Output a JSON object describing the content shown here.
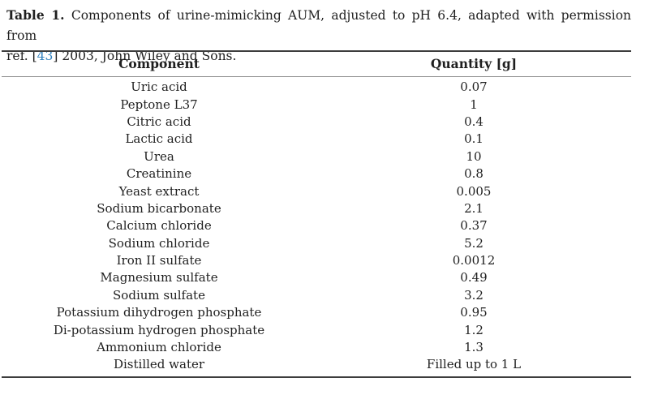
{
  "caption": {
    "label": "Table 1.",
    "line1_rest": "Components of urine-mimicking AUM, adjusted to pH 6.4, adapted with permission from",
    "line2_prefix": "ref. [",
    "ref_number": "43",
    "line2_suffix": "] 2003, John Wiley and Sons."
  },
  "table": {
    "columns": [
      "Component",
      "Quantity [g]"
    ],
    "rows": [
      {
        "component": "Uric acid",
        "quantity": "0.07"
      },
      {
        "component": "Peptone L37",
        "quantity": "1"
      },
      {
        "component": "Citric acid",
        "quantity": "0.4"
      },
      {
        "component": "Lactic acid",
        "quantity": "0.1"
      },
      {
        "component": "Urea",
        "quantity": "10"
      },
      {
        "component": "Creatinine",
        "quantity": "0.8"
      },
      {
        "component": "Yeast extract",
        "quantity": "0.005"
      },
      {
        "component": "Sodium bicarbonate",
        "quantity": "2.1"
      },
      {
        "component": "Calcium chloride",
        "quantity": "0.37"
      },
      {
        "component": "Sodium chloride",
        "quantity": "5.2"
      },
      {
        "component": "Iron II sulfate",
        "quantity": "0.0012"
      },
      {
        "component": "Magnesium sulfate",
        "quantity": "0.49"
      },
      {
        "component": "Sodium sulfate",
        "quantity": "3.2"
      },
      {
        "component": "Potassium dihydrogen phosphate",
        "quantity": "0.95"
      },
      {
        "component": "Di-potassium hydrogen phosphate",
        "quantity": "1.2"
      },
      {
        "component": "Ammonium chloride",
        "quantity": "1.3"
      },
      {
        "component": "Distilled water",
        "quantity": "Filled up to 1 L"
      }
    ]
  },
  "colors": {
    "text": "#1f1f1f",
    "ref_link_blue": "#3282be",
    "rule_dark": "#3d3d3d",
    "rule_light": "#8f8f8f"
  }
}
